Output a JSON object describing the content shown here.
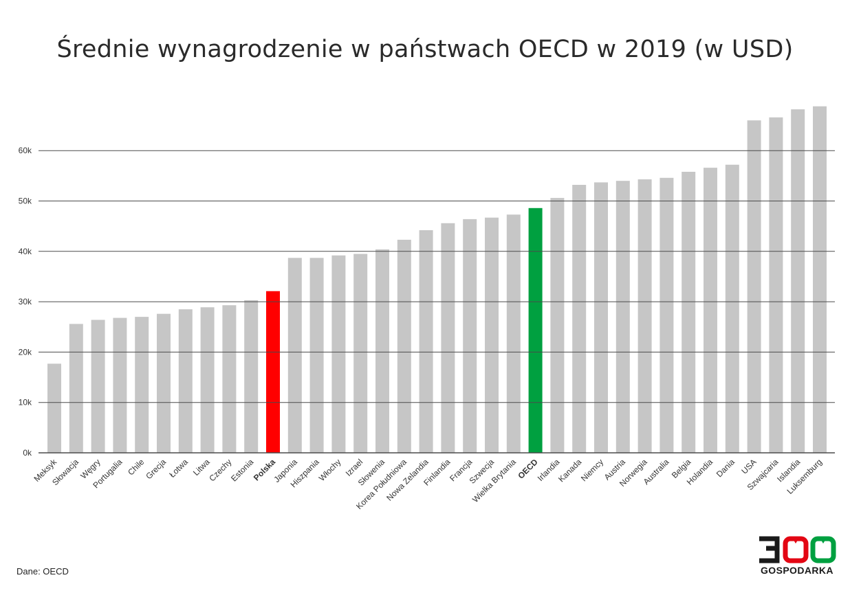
{
  "chart_data": {
    "type": "bar",
    "title": "Średnie wynagrodzenie w państwach OECD w 2019 (w USD)",
    "xlabel": "",
    "ylabel": "",
    "ylim": [
      0,
      70000
    ],
    "yticks": [
      0,
      10000,
      20000,
      30000,
      40000,
      50000,
      60000
    ],
    "ytick_labels": [
      "0k",
      "10k",
      "20k",
      "30k",
      "40k",
      "50k",
      "60k"
    ],
    "grid": true,
    "categories": [
      "Meksyk",
      "Słowacja",
      "Węgry",
      "Portugalia",
      "Chile",
      "Grecja",
      "Łotwa",
      "Litwa",
      "Czechy",
      "Estonia",
      "Polska",
      "Japonia",
      "Hiszpania",
      "Włochy",
      "Izrael",
      "Słowenia",
      "Korea Południowa",
      "Nowa Zelandia",
      "Finlandia",
      "Francja",
      "Szwecja",
      "Wielka Brytania",
      "OECD",
      "Irlandia",
      "Kanada",
      "Niemcy",
      "Austria",
      "Norwegia",
      "Australia",
      "Belgia",
      "Holandia",
      "Dania",
      "USA",
      "Szwajcaria",
      "Islandia",
      "Luksemburg"
    ],
    "values": [
      17700,
      25600,
      26400,
      26800,
      27000,
      27600,
      28500,
      28900,
      29300,
      30300,
      32100,
      38700,
      38700,
      39200,
      39500,
      40400,
      42300,
      44200,
      45600,
      46400,
      46700,
      47300,
      48600,
      50600,
      53200,
      53700,
      54000,
      54300,
      54600,
      55800,
      56600,
      57200,
      66000,
      66600,
      68200,
      68800
    ],
    "highlights": {
      "Polska": "#ff0000",
      "OECD": "#00a040"
    }
  },
  "colors": {
    "bar_default": "#c6c6c6",
    "grid": "#4a4a4a",
    "label_default": "#333333"
  },
  "source_note": "Dane: OECD",
  "logo": {
    "number": "300",
    "text": "GOSPODARKA",
    "colors": {
      "dark": "#1a1a1a",
      "red": "#e30613",
      "green": "#00a040"
    }
  }
}
